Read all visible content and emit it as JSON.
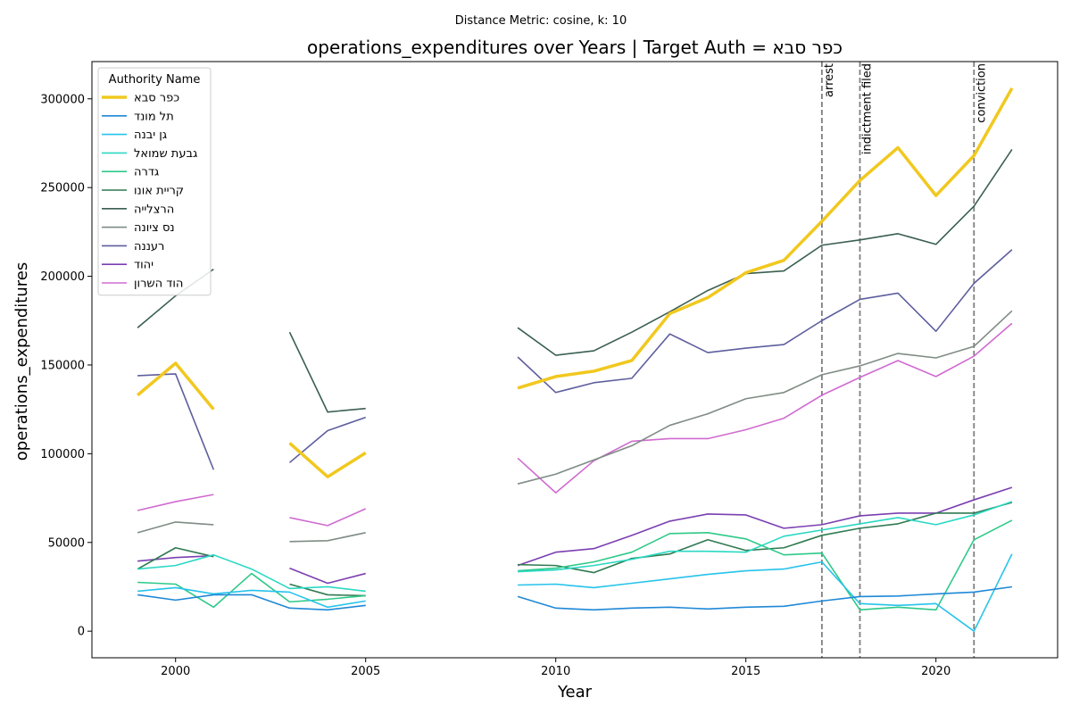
{
  "chart_data": {
    "type": "line",
    "suptitle": "Distance Metric: cosine, k: 10",
    "title": "operations_expenditures over Years | Target Auth = כפר סבא",
    "xlabel": "Year",
    "ylabel": "operations_expenditures",
    "xlim": [
      1997.8,
      2023.2
    ],
    "ylim": [
      -15000,
      321000
    ],
    "xticks": [
      2000,
      2005,
      2010,
      2015,
      2020
    ],
    "yticks": [
      0,
      50000,
      100000,
      150000,
      200000,
      250000,
      300000
    ],
    "legend_title": "Authority Name",
    "legend_position": "top-left",
    "x": [
      1999,
      2000,
      2001,
      2002,
      2003,
      2004,
      2005,
      2006,
      2007,
      2008,
      2009,
      2010,
      2011,
      2012,
      2013,
      2014,
      2015,
      2016,
      2017,
      2018,
      2019,
      2020,
      2021,
      2022
    ],
    "events": [
      {
        "year": 2017,
        "label": "arrest"
      },
      {
        "year": 2018,
        "label": "indictment filed"
      },
      {
        "year": 2021,
        "label": "conviction"
      }
    ],
    "series": [
      {
        "name": "כפר סבא",
        "color": "#f1c81f",
        "width": 3.5,
        "values": [
          133000,
          151000,
          125000,
          null,
          106000,
          87000,
          100500,
          null,
          null,
          null,
          137000,
          143500,
          146500,
          152500,
          179000,
          188000,
          202000,
          209000,
          231000,
          254000,
          272500,
          245500,
          268000,
          306000
        ]
      },
      {
        "name": "תל מונד",
        "color": "#1f88d6",
        "width": 1.6,
        "values": [
          20500,
          17500,
          20500,
          20500,
          13000,
          12000,
          14500,
          null,
          null,
          null,
          19500,
          13000,
          12000,
          13000,
          13500,
          12500,
          13500,
          14000,
          17000,
          19500,
          19800,
          21000,
          22000,
          25000
        ]
      },
      {
        "name": "גן יבנה",
        "color": "#26c3ea",
        "width": 1.6,
        "values": [
          22500,
          24500,
          21000,
          23000,
          22000,
          13500,
          17000,
          null,
          null,
          null,
          26000,
          26500,
          24500,
          27000,
          29500,
          32000,
          34000,
          35000,
          39000,
          15500,
          14500,
          15500,
          0,
          43500
        ]
      },
      {
        "name": "גבעת שמואל",
        "color": "#2ad8c4",
        "width": 1.6,
        "values": [
          35000,
          37000,
          43000,
          35000,
          24000,
          25000,
          22500,
          null,
          null,
          null,
          33500,
          34500,
          37000,
          40500,
          45000,
          45000,
          44500,
          53500,
          57000,
          60500,
          64000,
          60000,
          65500,
          73000
        ]
      },
      {
        "name": "גדרה",
        "color": "#2ec98a",
        "width": 1.6,
        "values": [
          27500,
          26500,
          13500,
          32500,
          16500,
          18000,
          20000,
          null,
          null,
          null,
          34000,
          35500,
          39000,
          44500,
          55000,
          55500,
          52000,
          43000,
          44000,
          12000,
          13500,
          12000,
          51500,
          62500
        ]
      },
      {
        "name": "קריית אונו",
        "color": "#2f7a50",
        "width": 1.6,
        "values": [
          35000,
          47000,
          42000,
          null,
          26500,
          20500,
          20000,
          null,
          null,
          null,
          37500,
          37000,
          33000,
          41000,
          43500,
          51500,
          45500,
          47000,
          54000,
          58000,
          60500,
          66500,
          66500,
          72500
        ]
      },
      {
        "name": "הרצלייה",
        "color": "#3a5f50",
        "width": 1.6,
        "values": [
          171000,
          189000,
          204000,
          null,
          168500,
          123500,
          125500,
          null,
          null,
          null,
          171000,
          155500,
          158000,
          168500,
          180000,
          192000,
          201500,
          203000,
          217500,
          220500,
          224000,
          218000,
          239500,
          271500
        ]
      },
      {
        "name": "נס ציונה",
        "color": "#7f8c84",
        "width": 1.6,
        "values": [
          55500,
          61500,
          60000,
          null,
          50500,
          51000,
          55500,
          null,
          null,
          null,
          83000,
          88500,
          96500,
          104500,
          116000,
          122500,
          131000,
          134500,
          144500,
          149500,
          156500,
          154000,
          160500,
          180500
        ]
      },
      {
        "name": "רעננה",
        "color": "#5e5e9e",
        "width": 1.6,
        "values": [
          144000,
          145000,
          91000,
          null,
          95000,
          113000,
          120500,
          null,
          null,
          null,
          154500,
          134500,
          140000,
          142500,
          167500,
          157000,
          159500,
          161500,
          175000,
          187000,
          190500,
          169000,
          196000,
          215000
        ]
      },
      {
        "name": "יהוד",
        "color": "#7b3fb0",
        "width": 1.6,
        "values": [
          39500,
          41500,
          42500,
          null,
          35500,
          27000,
          32500,
          null,
          null,
          null,
          37000,
          44500,
          46500,
          54000,
          62000,
          66000,
          65500,
          58000,
          60000,
          65000,
          66500,
          66500,
          74000,
          81000
        ]
      },
      {
        "name": "הוד השרון",
        "color": "#d06bd0",
        "width": 1.6,
        "values": [
          68000,
          73000,
          77000,
          null,
          64000,
          59500,
          69000,
          null,
          null,
          null,
          97500,
          78000,
          96000,
          107000,
          108500,
          108500,
          113500,
          120000,
          133000,
          143000,
          152500,
          143500,
          155000,
          173500
        ]
      }
    ]
  }
}
